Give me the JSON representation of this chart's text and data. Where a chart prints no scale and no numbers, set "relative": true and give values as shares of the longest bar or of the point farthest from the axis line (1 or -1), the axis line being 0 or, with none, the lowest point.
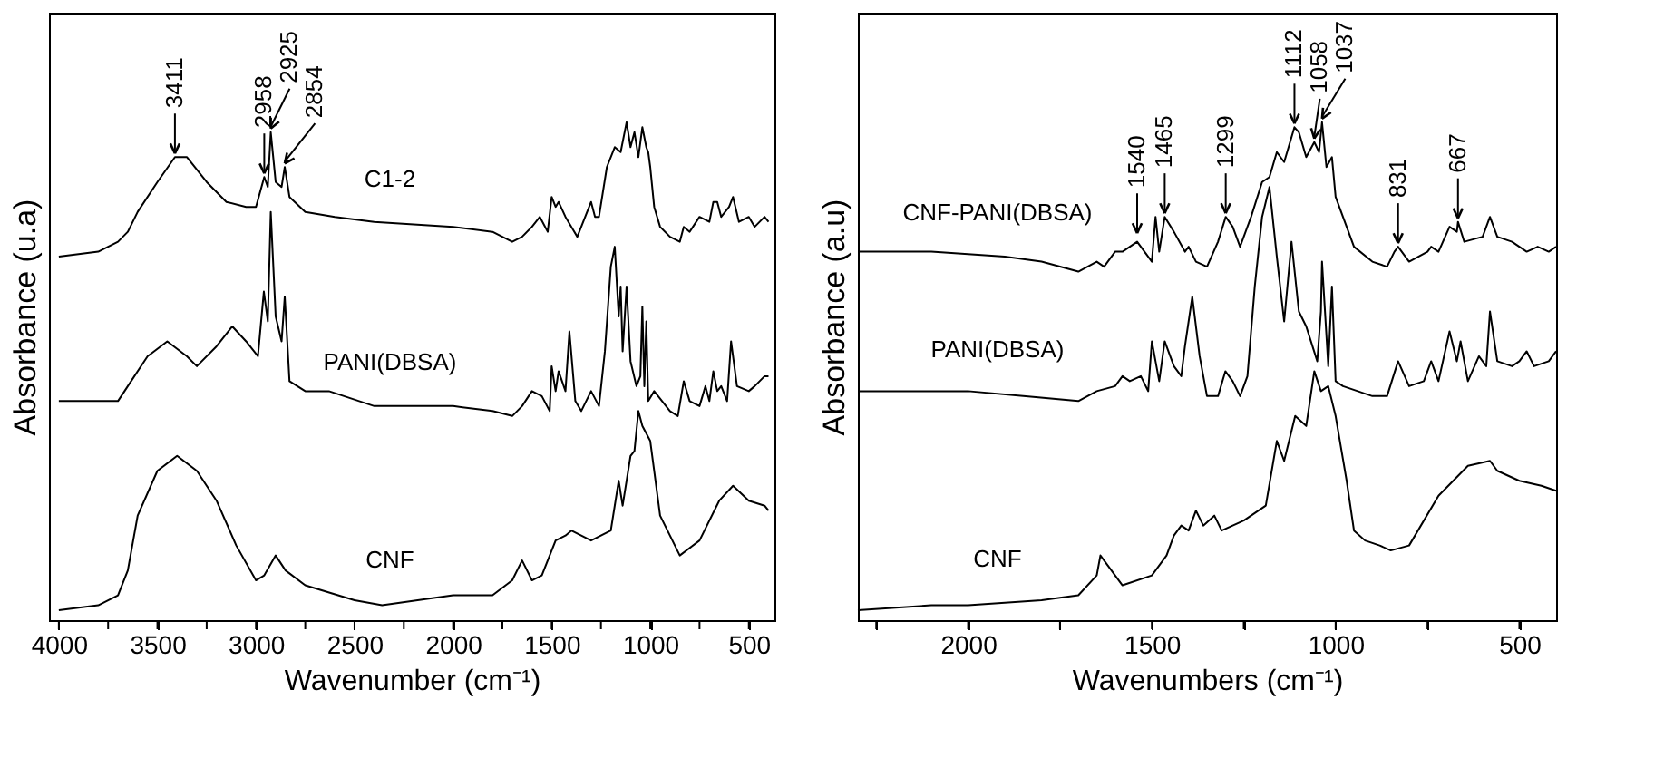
{
  "chart_data": [
    {
      "type": "line",
      "relative": true,
      "xlabel": "Wavenumber (cm⁻¹)",
      "ylabel": "Absorbance (u.a)",
      "xlim": [
        4050,
        370
      ],
      "xticks": [
        4000,
        {
          "value": 3750,
          "label": null
        },
        3500,
        {
          "value": 3250,
          "label": null
        },
        3000,
        {
          "value": 2750,
          "label": null
        },
        2500,
        {
          "value": 2250,
          "label": null
        },
        2000,
        {
          "value": 1750,
          "label": null
        },
        1500,
        {
          "value": 1250,
          "label": null
        },
        1000,
        {
          "value": 750,
          "label": null
        },
        500
      ],
      "tick_labels": "x",
      "grid": false,
      "line_style": "solid",
      "series": [
        {
          "name": "C1-2",
          "color": "#000000",
          "x": [
            4000,
            3800,
            3700,
            3650,
            3600,
            3500,
            3411,
            3350,
            3250,
            3150,
            3050,
            3000,
            2958,
            2940,
            2925,
            2900,
            2870,
            2854,
            2830,
            2750,
            2600,
            2400,
            2000,
            1800,
            1700,
            1650,
            1600,
            1560,
            1520,
            1500,
            1480,
            1465,
            1430,
            1400,
            1370,
            1330,
            1300,
            1280,
            1260,
            1220,
            1180,
            1150,
            1120,
            1100,
            1080,
            1060,
            1040,
            1020,
            1010,
            1000,
            980,
            950,
            900,
            850,
            830,
            800,
            750,
            700,
            680,
            660,
            640,
            600,
            580,
            550,
            500,
            470,
            420,
            400
          ],
          "values": [
            0.73,
            0.74,
            0.76,
            0.78,
            0.82,
            0.88,
            0.93,
            0.93,
            0.88,
            0.84,
            0.83,
            0.83,
            0.89,
            0.87,
            0.98,
            0.88,
            0.87,
            0.91,
            0.85,
            0.82,
            0.81,
            0.8,
            0.79,
            0.78,
            0.76,
            0.77,
            0.79,
            0.81,
            0.78,
            0.85,
            0.83,
            0.84,
            0.81,
            0.79,
            0.77,
            0.81,
            0.84,
            0.81,
            0.81,
            0.91,
            0.95,
            0.94,
            1.0,
            0.95,
            0.98,
            0.93,
            0.99,
            0.95,
            0.94,
            0.91,
            0.83,
            0.79,
            0.77,
            0.76,
            0.79,
            0.78,
            0.81,
            0.8,
            0.84,
            0.84,
            0.81,
            0.83,
            0.85,
            0.8,
            0.81,
            0.79,
            0.81,
            0.8
          ]
        },
        {
          "name": "PANI(DBSA)",
          "color": "#000000",
          "x": [
            4000,
            3700,
            3650,
            3550,
            3450,
            3350,
            3300,
            3200,
            3120,
            3050,
            2990,
            2960,
            2940,
            2925,
            2900,
            2870,
            2854,
            2830,
            2750,
            2630,
            2400,
            2000,
            1800,
            1700,
            1650,
            1600,
            1550,
            1510,
            1500,
            1480,
            1465,
            1430,
            1410,
            1380,
            1350,
            1300,
            1260,
            1230,
            1200,
            1180,
            1160,
            1150,
            1140,
            1120,
            1100,
            1070,
            1050,
            1040,
            1030,
            1020,
            1010,
            980,
            900,
            860,
            830,
            800,
            750,
            720,
            700,
            680,
            660,
            640,
            610,
            590,
            560,
            500,
            470,
            420,
            400
          ],
          "values": [
            0.44,
            0.44,
            0.47,
            0.53,
            0.56,
            0.53,
            0.51,
            0.55,
            0.59,
            0.56,
            0.53,
            0.66,
            0.6,
            0.82,
            0.61,
            0.56,
            0.65,
            0.48,
            0.46,
            0.46,
            0.43,
            0.43,
            0.42,
            0.41,
            0.43,
            0.46,
            0.45,
            0.42,
            0.51,
            0.46,
            0.5,
            0.46,
            0.58,
            0.44,
            0.42,
            0.46,
            0.43,
            0.54,
            0.71,
            0.75,
            0.61,
            0.67,
            0.54,
            0.67,
            0.52,
            0.47,
            0.49,
            0.63,
            0.47,
            0.6,
            0.44,
            0.46,
            0.42,
            0.41,
            0.48,
            0.44,
            0.43,
            0.47,
            0.44,
            0.5,
            0.46,
            0.47,
            0.44,
            0.56,
            0.47,
            0.46,
            0.47,
            0.49,
            0.49
          ]
        },
        {
          "name": "CNF",
          "color": "#000000",
          "x": [
            4000,
            3800,
            3700,
            3650,
            3600,
            3500,
            3400,
            3300,
            3200,
            3100,
            3000,
            2958,
            2900,
            2850,
            2750,
            2500,
            2360,
            2000,
            1800,
            1700,
            1650,
            1600,
            1550,
            1480,
            1430,
            1400,
            1350,
            1300,
            1200,
            1160,
            1140,
            1100,
            1080,
            1060,
            1040,
            1000,
            950,
            900,
            850,
            750,
            650,
            580,
            500,
            420,
            400
          ],
          "values": [
            0.02,
            0.03,
            0.05,
            0.1,
            0.21,
            0.3,
            0.33,
            0.3,
            0.24,
            0.15,
            0.08,
            0.09,
            0.13,
            0.1,
            0.07,
            0.04,
            0.03,
            0.05,
            0.05,
            0.08,
            0.12,
            0.08,
            0.09,
            0.16,
            0.17,
            0.18,
            0.17,
            0.16,
            0.18,
            0.28,
            0.23,
            0.33,
            0.34,
            0.42,
            0.39,
            0.36,
            0.21,
            0.17,
            0.13,
            0.16,
            0.24,
            0.27,
            0.24,
            0.23,
            0.22
          ]
        }
      ],
      "annotations": [
        {
          "text": "3411",
          "x": 3411,
          "y": 0.93
        },
        {
          "text": "2958",
          "x": 2958,
          "y": 0.89
        },
        {
          "text": "2925",
          "x": 2925,
          "y": 0.98
        },
        {
          "text": "2854",
          "x": 2854,
          "y": 0.91
        }
      ]
    },
    {
      "type": "line",
      "relative": true,
      "xlabel": "Wavenumbers (cm⁻¹)",
      "ylabel": "Absorbance (a.u)",
      "xlim": [
        2300,
        400
      ],
      "xticks": [
        {
          "value": 2250,
          "label": null
        },
        2000,
        {
          "value": 1750,
          "label": null
        },
        1500,
        {
          "value": 1250,
          "label": null
        },
        1000,
        {
          "value": 750,
          "label": null
        },
        500
      ],
      "tick_labels": "x",
      "grid": false,
      "line_style": "solid",
      "series": [
        {
          "name": "CNF-PANI(DBSA)",
          "color": "#000000",
          "x": [
            2300,
            2100,
            1900,
            1800,
            1700,
            1650,
            1630,
            1600,
            1580,
            1540,
            1520,
            1500,
            1490,
            1480,
            1465,
            1440,
            1410,
            1400,
            1380,
            1350,
            1320,
            1299,
            1280,
            1260,
            1230,
            1200,
            1180,
            1160,
            1140,
            1112,
            1100,
            1080,
            1058,
            1045,
            1037,
            1025,
            1010,
            1000,
            970,
            950,
            900,
            860,
            840,
            830,
            800,
            750,
            740,
            720,
            690,
            670,
            667,
            650,
            600,
            580,
            560,
            520,
            500,
            480,
            450,
            420,
            400
          ],
          "values": [
            0.74,
            0.74,
            0.73,
            0.72,
            0.7,
            0.72,
            0.71,
            0.74,
            0.74,
            0.76,
            0.74,
            0.72,
            0.81,
            0.74,
            0.81,
            0.78,
            0.74,
            0.75,
            0.72,
            0.71,
            0.76,
            0.81,
            0.79,
            0.75,
            0.81,
            0.88,
            0.89,
            0.94,
            0.92,
            0.99,
            0.98,
            0.93,
            0.96,
            0.94,
            1.0,
            0.91,
            0.93,
            0.85,
            0.79,
            0.75,
            0.72,
            0.71,
            0.74,
            0.75,
            0.72,
            0.74,
            0.75,
            0.74,
            0.79,
            0.78,
            0.8,
            0.76,
            0.77,
            0.81,
            0.77,
            0.76,
            0.75,
            0.74,
            0.75,
            0.74,
            0.75
          ]
        },
        {
          "name": "PANI(DBSA)",
          "color": "#000000",
          "x": [
            2300,
            2000,
            1850,
            1700,
            1650,
            1600,
            1580,
            1560,
            1530,
            1510,
            1500,
            1480,
            1465,
            1440,
            1420,
            1410,
            1390,
            1370,
            1350,
            1320,
            1300,
            1280,
            1260,
            1240,
            1220,
            1200,
            1180,
            1160,
            1140,
            1120,
            1100,
            1080,
            1050,
            1040,
            1037,
            1020,
            1010,
            1000,
            980,
            900,
            860,
            830,
            800,
            760,
            740,
            720,
            690,
            670,
            660,
            640,
            610,
            590,
            580,
            560,
            520,
            500,
            480,
            460,
            420,
            400
          ],
          "values": [
            0.46,
            0.46,
            0.45,
            0.44,
            0.46,
            0.47,
            0.49,
            0.48,
            0.49,
            0.46,
            0.56,
            0.48,
            0.56,
            0.51,
            0.49,
            0.55,
            0.65,
            0.53,
            0.45,
            0.45,
            0.5,
            0.48,
            0.45,
            0.49,
            0.67,
            0.81,
            0.87,
            0.73,
            0.6,
            0.76,
            0.62,
            0.59,
            0.52,
            0.62,
            0.72,
            0.51,
            0.67,
            0.48,
            0.47,
            0.45,
            0.45,
            0.52,
            0.47,
            0.48,
            0.52,
            0.48,
            0.58,
            0.52,
            0.56,
            0.48,
            0.53,
            0.51,
            0.62,
            0.52,
            0.51,
            0.52,
            0.54,
            0.51,
            0.52,
            0.54
          ]
        },
        {
          "name": "CNF",
          "color": "#000000",
          "x": [
            2300,
            2100,
            2000,
            1800,
            1700,
            1650,
            1640,
            1620,
            1580,
            1500,
            1460,
            1440,
            1420,
            1400,
            1380,
            1360,
            1330,
            1310,
            1250,
            1210,
            1190,
            1160,
            1140,
            1110,
            1080,
            1058,
            1040,
            1020,
            1000,
            970,
            950,
            920,
            880,
            850,
            800,
            720,
            680,
            640,
            580,
            560,
            500,
            440,
            400
          ],
          "values": [
            0.02,
            0.03,
            0.03,
            0.04,
            0.05,
            0.09,
            0.13,
            0.11,
            0.07,
            0.09,
            0.13,
            0.17,
            0.19,
            0.18,
            0.22,
            0.19,
            0.21,
            0.18,
            0.2,
            0.22,
            0.23,
            0.36,
            0.32,
            0.41,
            0.39,
            0.5,
            0.46,
            0.47,
            0.41,
            0.28,
            0.18,
            0.16,
            0.15,
            0.14,
            0.15,
            0.25,
            0.28,
            0.31,
            0.32,
            0.3,
            0.28,
            0.27,
            0.26
          ]
        }
      ],
      "annotations": [
        {
          "text": "1540",
          "x": 1540,
          "y": 0.77
        },
        {
          "text": "1465",
          "x": 1465,
          "y": 0.81
        },
        {
          "text": "1299",
          "x": 1299,
          "y": 0.81
        },
        {
          "text": "1112",
          "x": 1112,
          "y": 0.99
        },
        {
          "text": "1058",
          "x": 1058,
          "y": 0.96
        },
        {
          "text": "1037",
          "x": 1037,
          "y": 1.0
        },
        {
          "text": "831",
          "x": 830,
          "y": 0.75
        },
        {
          "text": "667",
          "x": 667,
          "y": 0.8
        }
      ]
    }
  ]
}
